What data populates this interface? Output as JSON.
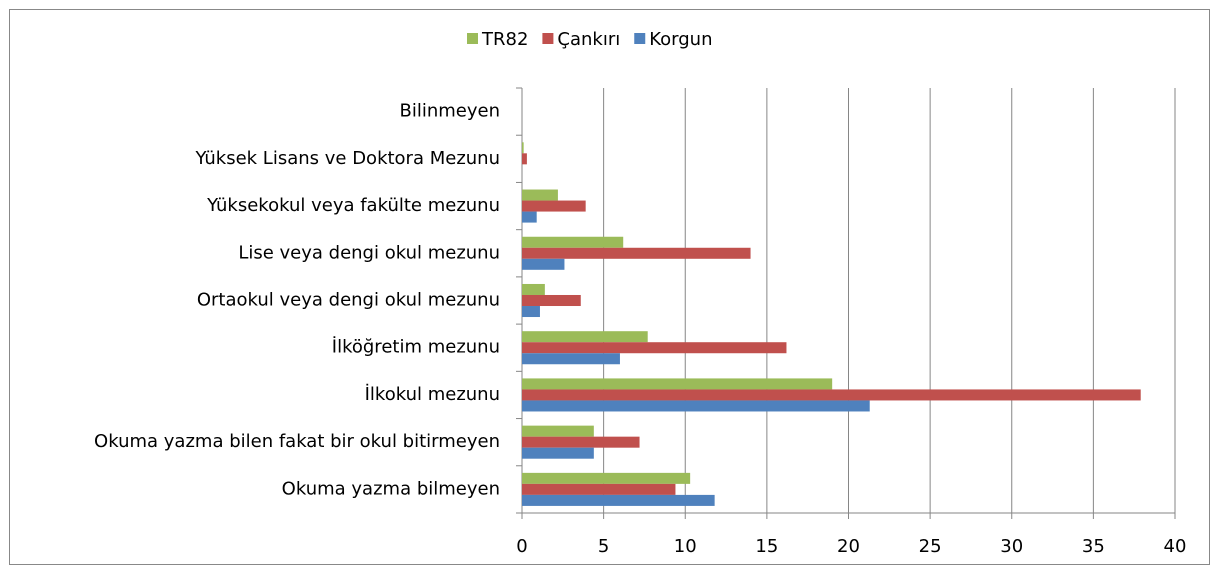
{
  "chart_data": {
    "type": "hbar",
    "categories": [
      "Okuma yazma bilmeyen",
      "Okuma yazma bilen fakat bir okul bitirmeyen",
      "İlkokul mezunu",
      "İlköğretim mezunu",
      "Ortaokul veya dengi okul mezunu",
      "Lise veya dengi okul mezunu",
      "Yüksekokul veya fakülte mezunu",
      "Yüksek Lisans ve Doktora Mezunu",
      "Bilinmeyen"
    ],
    "series": [
      {
        "name": "TR82",
        "color": "#9bbb59",
        "values": [
          10.3,
          4.4,
          19.0,
          7.7,
          1.4,
          6.2,
          2.2,
          0.1,
          0
        ]
      },
      {
        "name": "Çankırı",
        "color": "#c0504d",
        "values": [
          9.4,
          7.2,
          37.9,
          16.2,
          3.6,
          14.0,
          3.9,
          0.3,
          0
        ]
      },
      {
        "name": "Korgun",
        "color": "#4f81bd",
        "values": [
          11.8,
          4.4,
          21.3,
          6.0,
          1.1,
          2.6,
          0.9,
          0,
          0
        ]
      }
    ],
    "xlim": [
      0,
      40
    ],
    "xticks": [
      0,
      5,
      10,
      15,
      20,
      25,
      30,
      35,
      40
    ],
    "grid": true,
    "legend": "top"
  }
}
